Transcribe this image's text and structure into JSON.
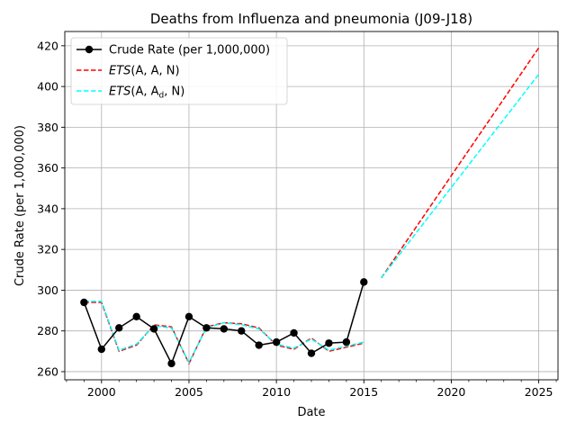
{
  "chart_data": {
    "type": "line",
    "title": "Deaths from Influenza and pneumonia (J09-J18)",
    "xlabel": "Date",
    "ylabel": "Crude Rate (per 1,000,000)",
    "xlim": [
      1997.9,
      2026.1
    ],
    "ylim": [
      256,
      427
    ],
    "x_ticks": [
      2000,
      2005,
      2010,
      2015,
      2020,
      2025
    ],
    "y_ticks": [
      260,
      280,
      300,
      320,
      340,
      360,
      380,
      400,
      420
    ],
    "x_minor_step": 1,
    "grid": true,
    "legend_position": "top-left",
    "series": [
      {
        "name": "Crude Rate (per 1,000,000)",
        "style": "line-marker",
        "color": "#000000",
        "x": [
          1999,
          2000,
          2001,
          2002,
          2003,
          2004,
          2005,
          2006,
          2007,
          2008,
          2009,
          2010,
          2011,
          2012,
          2013,
          2014,
          2015
        ],
        "values": [
          294,
          271,
          281.5,
          287,
          281,
          264,
          287,
          281.5,
          281,
          280,
          273,
          274.5,
          279,
          269,
          274,
          274.5,
          304
        ]
      },
      {
        "name_prefix": "ETS",
        "name_args": "(A, A, N)",
        "style": "dashed",
        "color": "#ff0000",
        "x": [
          1999,
          2000,
          2001,
          2002,
          2003,
          2004,
          2005,
          2006,
          2007,
          2008,
          2009,
          2010,
          2011,
          2012,
          2013,
          2014,
          2015
        ],
        "values": [
          294,
          294,
          270,
          273,
          283,
          282,
          264,
          282,
          284,
          283.5,
          281.5,
          273,
          271,
          276.5,
          270,
          272,
          274
        ],
        "forecast_x": [
          2016,
          2025
        ],
        "forecast_values": [
          306,
          419
        ]
      },
      {
        "name_prefix": "ETS",
        "name_args_pre": "(A, A",
        "name_args_sub": "d",
        "name_args_post": ", N)",
        "style": "dashed",
        "color": "#00ffff",
        "x": [
          1999,
          2000,
          2001,
          2002,
          2003,
          2004,
          2005,
          2006,
          2007,
          2008,
          2009,
          2010,
          2011,
          2012,
          2013,
          2014,
          2015
        ],
        "values": [
          294.5,
          294.5,
          270.5,
          273.5,
          282.5,
          281.5,
          264.5,
          281.5,
          284,
          283,
          281,
          273.5,
          271.5,
          276,
          270.5,
          272.5,
          274.5
        ],
        "forecast_x": [
          2016,
          2025
        ],
        "forecast_values": [
          306,
          406
        ]
      }
    ]
  }
}
